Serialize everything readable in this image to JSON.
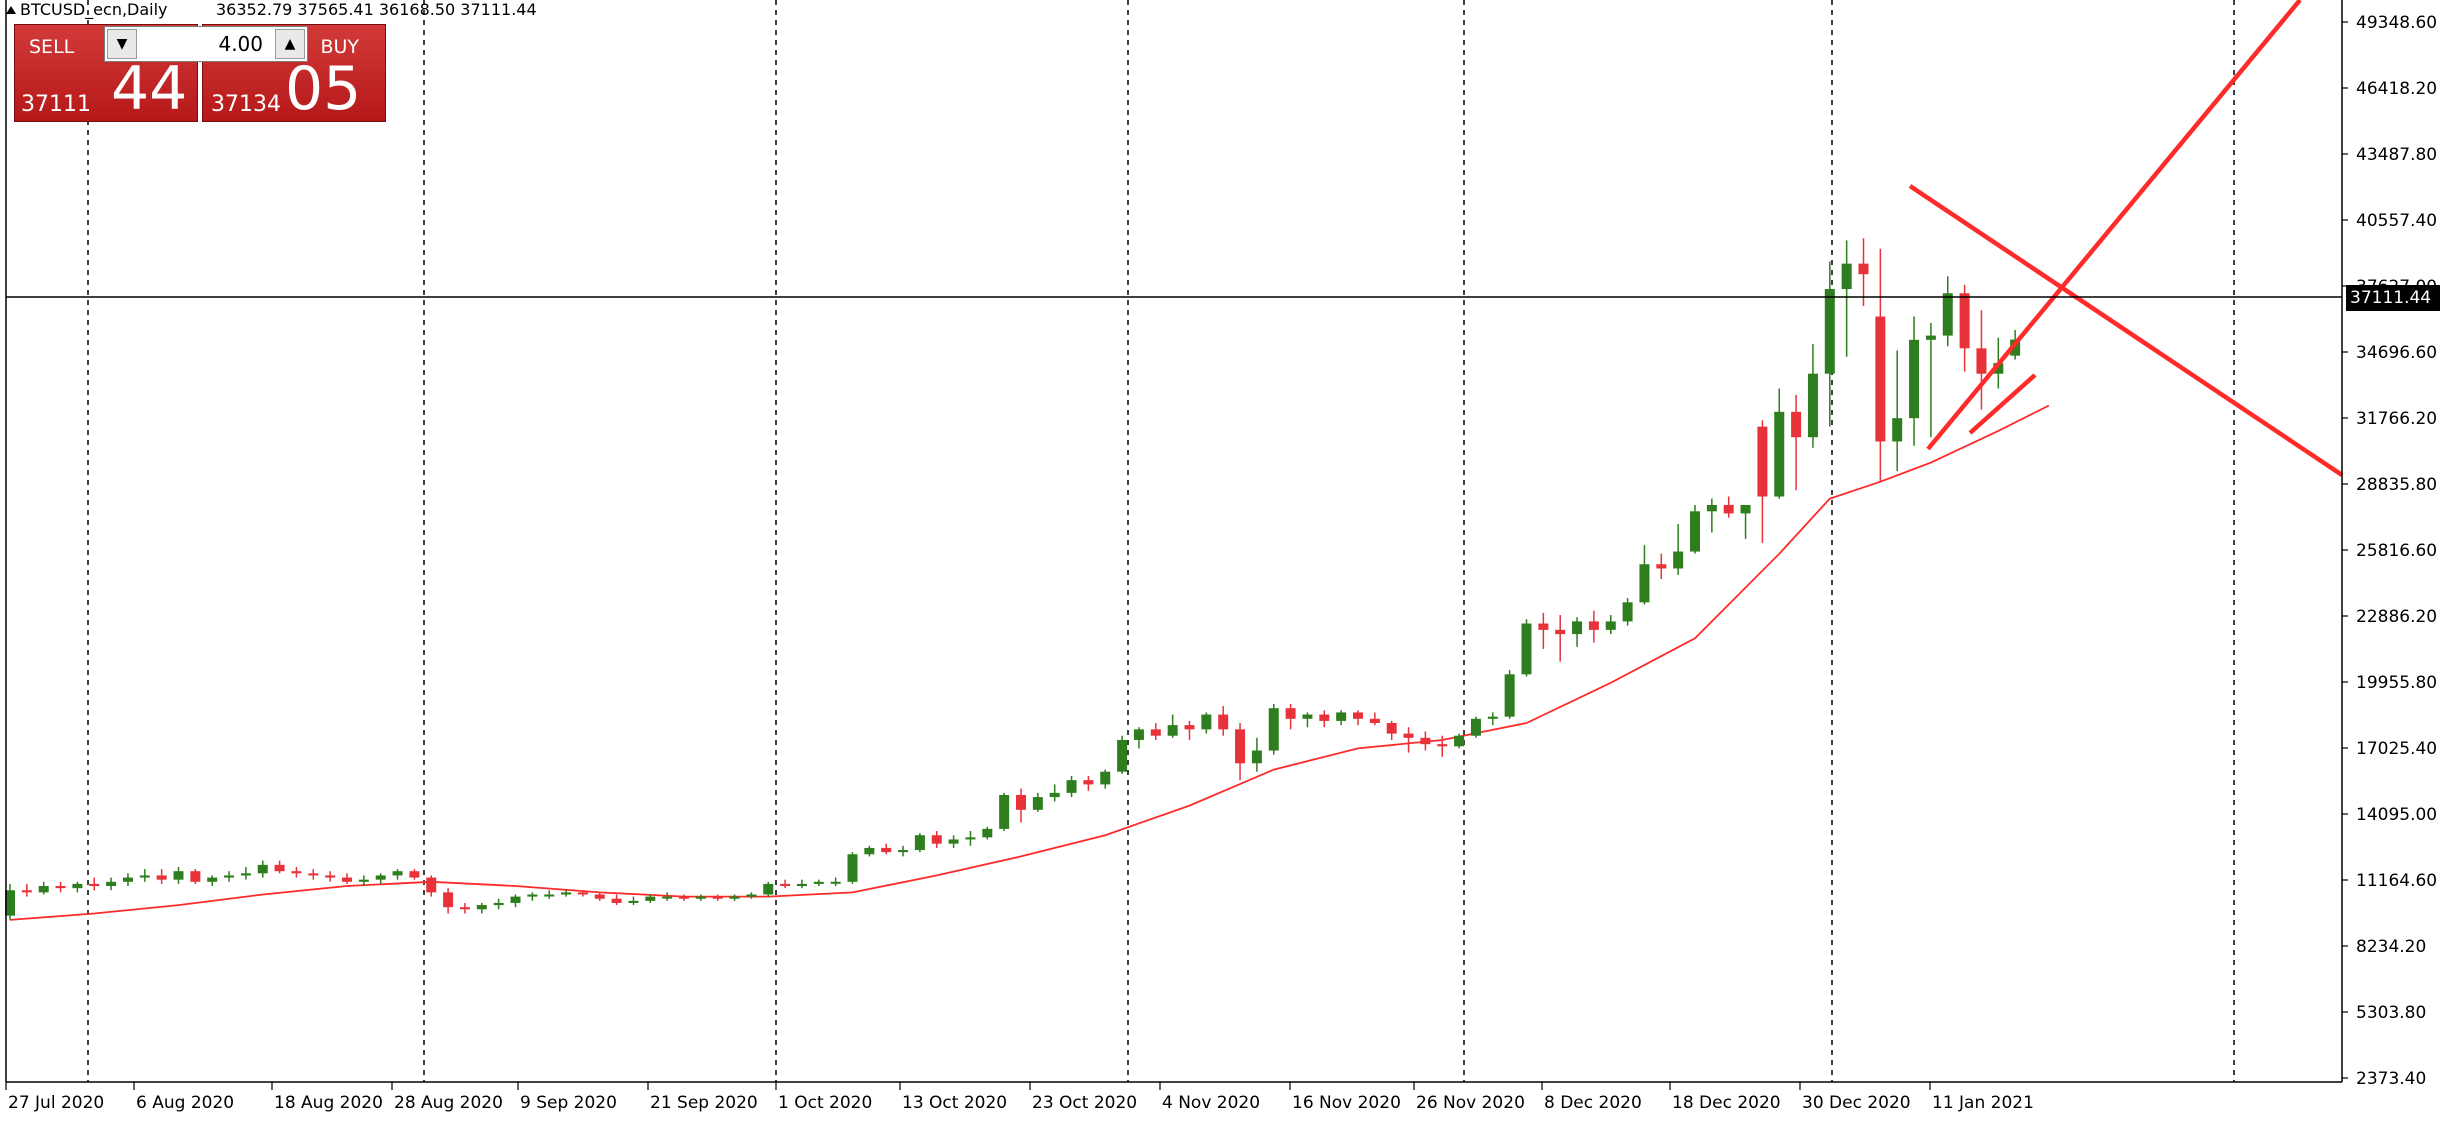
{
  "header": {
    "symbol_timeframe": "BTCUSD_ecn,Daily",
    "ohlc": "36352.79 37565.41 36168.50 37111.44"
  },
  "trade_panel": {
    "sell_label": "SELL",
    "buy_label": "BUY",
    "volume": "4.00",
    "sell_price_prefix": "37111",
    "sell_price_big": "44",
    "buy_price_prefix": "37134",
    "buy_price_big": "05",
    "down_arrow": "▼",
    "up_arrow": "▲"
  },
  "colors": {
    "bull": "#2e7d1e",
    "bear": "#e8323a",
    "moving_average": "#ff2a2a",
    "trendlines": "#ff2a2a",
    "background": "#ffffff",
    "grid": "#000000"
  },
  "price_axis": {
    "ticks": [
      "49348.60",
      "46418.20",
      "43487.80",
      "40557.40",
      "37627.00",
      "34696.60",
      "31766.20",
      "28835.80",
      "25816.60",
      "22886.20",
      "19955.80",
      "17025.40",
      "14095.00",
      "11164.60",
      "8234.20",
      "5303.80",
      "2373.40"
    ],
    "current_price": "37111.44"
  },
  "chart_data": {
    "type": "candlestick",
    "y_range": [
      2373.4,
      50300
    ],
    "date_ticks": [
      "27 Jul 2020",
      "6 Aug 2020",
      "18 Aug 2020",
      "28 Aug 2020",
      "9 Sep 2020",
      "21 Sep 2020",
      "1 Oct 2020",
      "13 Oct 2020",
      "23 Oct 2020",
      "4 Nov 2020",
      "16 Nov 2020",
      "26 Nov 2020",
      "8 Dec 2020",
      "18 Dec 2020",
      "30 Dec 2020",
      "11 Jan 2021"
    ],
    "candles": [
      {
        "o": 9900,
        "h": 11400,
        "l": 9700,
        "c": 11100
      },
      {
        "o": 11100,
        "h": 11400,
        "l": 10800,
        "c": 11000
      },
      {
        "o": 11000,
        "h": 11500,
        "l": 10900,
        "c": 11300
      },
      {
        "o": 11300,
        "h": 11500,
        "l": 11000,
        "c": 11200
      },
      {
        "o": 11200,
        "h": 11500,
        "l": 11000,
        "c": 11400
      },
      {
        "o": 11400,
        "h": 11700,
        "l": 11100,
        "c": 11300
      },
      {
        "o": 11300,
        "h": 11700,
        "l": 11100,
        "c": 11500
      },
      {
        "o": 11500,
        "h": 11900,
        "l": 11300,
        "c": 11700
      },
      {
        "o": 11700,
        "h": 12100,
        "l": 11500,
        "c": 11800
      },
      {
        "o": 11800,
        "h": 12100,
        "l": 11400,
        "c": 11600
      },
      {
        "o": 11600,
        "h": 12200,
        "l": 11400,
        "c": 12000
      },
      {
        "o": 12000,
        "h": 12100,
        "l": 11400,
        "c": 11500
      },
      {
        "o": 11500,
        "h": 11800,
        "l": 11300,
        "c": 11700
      },
      {
        "o": 11700,
        "h": 12000,
        "l": 11500,
        "c": 11800
      },
      {
        "o": 11800,
        "h": 12200,
        "l": 11600,
        "c": 11900
      },
      {
        "o": 11900,
        "h": 12500,
        "l": 11700,
        "c": 12300
      },
      {
        "o": 12300,
        "h": 12500,
        "l": 11900,
        "c": 12000
      },
      {
        "o": 12000,
        "h": 12200,
        "l": 11700,
        "c": 11900
      },
      {
        "o": 11900,
        "h": 12100,
        "l": 11600,
        "c": 11800
      },
      {
        "o": 11800,
        "h": 12000,
        "l": 11500,
        "c": 11700
      },
      {
        "o": 11700,
        "h": 11900,
        "l": 11400,
        "c": 11500
      },
      {
        "o": 11500,
        "h": 11800,
        "l": 11300,
        "c": 11600
      },
      {
        "o": 11600,
        "h": 11900,
        "l": 11400,
        "c": 11800
      },
      {
        "o": 11800,
        "h": 12100,
        "l": 11600,
        "c": 12000
      },
      {
        "o": 12000,
        "h": 12100,
        "l": 11600,
        "c": 11700
      },
      {
        "o": 11700,
        "h": 11800,
        "l": 10800,
        "c": 11000
      },
      {
        "o": 11000,
        "h": 11200,
        "l": 10000,
        "c": 10300
      },
      {
        "o": 10300,
        "h": 10500,
        "l": 10000,
        "c": 10200
      },
      {
        "o": 10200,
        "h": 10500,
        "l": 10000,
        "c": 10400
      },
      {
        "o": 10400,
        "h": 10700,
        "l": 10200,
        "c": 10500
      },
      {
        "o": 10500,
        "h": 10900,
        "l": 10300,
        "c": 10800
      },
      {
        "o": 10800,
        "h": 11000,
        "l": 10600,
        "c": 10900
      },
      {
        "o": 10900,
        "h": 11100,
        "l": 10700,
        "c": 10900
      },
      {
        "o": 10900,
        "h": 11100,
        "l": 10800,
        "c": 11000
      },
      {
        "o": 11000,
        "h": 11100,
        "l": 10800,
        "c": 10900
      },
      {
        "o": 10900,
        "h": 11000,
        "l": 10600,
        "c": 10700
      },
      {
        "o": 10700,
        "h": 10900,
        "l": 10400,
        "c": 10500
      },
      {
        "o": 10500,
        "h": 10800,
        "l": 10400,
        "c": 10600
      },
      {
        "o": 10600,
        "h": 10900,
        "l": 10500,
        "c": 10800
      },
      {
        "o": 10800,
        "h": 11000,
        "l": 10600,
        "c": 10800
      },
      {
        "o": 10800,
        "h": 10900,
        "l": 10600,
        "c": 10700
      },
      {
        "o": 10700,
        "h": 10900,
        "l": 10600,
        "c": 10800
      },
      {
        "o": 10800,
        "h": 10900,
        "l": 10600,
        "c": 10700
      },
      {
        "o": 10700,
        "h": 10900,
        "l": 10600,
        "c": 10800
      },
      {
        "o": 10800,
        "h": 11000,
        "l": 10700,
        "c": 10900
      },
      {
        "o": 10900,
        "h": 11500,
        "l": 10800,
        "c": 11400
      },
      {
        "o": 11400,
        "h": 11600,
        "l": 11200,
        "c": 11300
      },
      {
        "o": 11300,
        "h": 11600,
        "l": 11200,
        "c": 11400
      },
      {
        "o": 11400,
        "h": 11600,
        "l": 11300,
        "c": 11500
      },
      {
        "o": 11500,
        "h": 11700,
        "l": 11300,
        "c": 11500
      },
      {
        "o": 11500,
        "h": 12900,
        "l": 11400,
        "c": 12800
      },
      {
        "o": 12800,
        "h": 13200,
        "l": 12700,
        "c": 13100
      },
      {
        "o": 13100,
        "h": 13300,
        "l": 12800,
        "c": 12900
      },
      {
        "o": 12900,
        "h": 13200,
        "l": 12700,
        "c": 13000
      },
      {
        "o": 13000,
        "h": 13800,
        "l": 12900,
        "c": 13700
      },
      {
        "o": 13700,
        "h": 13900,
        "l": 13100,
        "c": 13300
      },
      {
        "o": 13300,
        "h": 13700,
        "l": 13100,
        "c": 13500
      },
      {
        "o": 13500,
        "h": 13900,
        "l": 13200,
        "c": 13600
      },
      {
        "o": 13600,
        "h": 14100,
        "l": 13500,
        "c": 14000
      },
      {
        "o": 14000,
        "h": 15700,
        "l": 13900,
        "c": 15600
      },
      {
        "o": 15600,
        "h": 15900,
        "l": 14300,
        "c": 14900
      },
      {
        "o": 14900,
        "h": 15700,
        "l": 14800,
        "c": 15500
      },
      {
        "o": 15500,
        "h": 16100,
        "l": 15300,
        "c": 15700
      },
      {
        "o": 15700,
        "h": 16500,
        "l": 15500,
        "c": 16300
      },
      {
        "o": 16300,
        "h": 16500,
        "l": 15800,
        "c": 16100
      },
      {
        "o": 16100,
        "h": 16800,
        "l": 15900,
        "c": 16700
      },
      {
        "o": 16700,
        "h": 18400,
        "l": 16600,
        "c": 18200
      },
      {
        "o": 18200,
        "h": 18800,
        "l": 17800,
        "c": 18700
      },
      {
        "o": 18700,
        "h": 19000,
        "l": 18200,
        "c": 18400
      },
      {
        "o": 18400,
        "h": 19400,
        "l": 18300,
        "c": 18900
      },
      {
        "o": 18900,
        "h": 19100,
        "l": 18200,
        "c": 18700
      },
      {
        "o": 18700,
        "h": 19500,
        "l": 18500,
        "c": 19400
      },
      {
        "o": 19400,
        "h": 19800,
        "l": 18400,
        "c": 18700
      },
      {
        "o": 18700,
        "h": 19000,
        "l": 16300,
        "c": 17100
      },
      {
        "o": 17100,
        "h": 18300,
        "l": 16700,
        "c": 17700
      },
      {
        "o": 17700,
        "h": 19900,
        "l": 17500,
        "c": 19700
      },
      {
        "o": 19700,
        "h": 19900,
        "l": 18700,
        "c": 19200
      },
      {
        "o": 19200,
        "h": 19500,
        "l": 18800,
        "c": 19400
      },
      {
        "o": 19400,
        "h": 19600,
        "l": 18800,
        "c": 19100
      },
      {
        "o": 19100,
        "h": 19600,
        "l": 18900,
        "c": 19500
      },
      {
        "o": 19500,
        "h": 19600,
        "l": 18900,
        "c": 19200
      },
      {
        "o": 19200,
        "h": 19500,
        "l": 18900,
        "c": 19000
      },
      {
        "o": 19000,
        "h": 19100,
        "l": 18200,
        "c": 18500
      },
      {
        "o": 18500,
        "h": 18800,
        "l": 17600,
        "c": 18300
      },
      {
        "o": 18300,
        "h": 18600,
        "l": 17700,
        "c": 18000
      },
      {
        "o": 18000,
        "h": 18400,
        "l": 17400,
        "c": 17900
      },
      {
        "o": 17900,
        "h": 18500,
        "l": 17800,
        "c": 18400
      },
      {
        "o": 18400,
        "h": 19300,
        "l": 18300,
        "c": 19200
      },
      {
        "o": 19200,
        "h": 19500,
        "l": 18900,
        "c": 19300
      },
      {
        "o": 19300,
        "h": 21500,
        "l": 19200,
        "c": 21300
      },
      {
        "o": 21300,
        "h": 23900,
        "l": 21200,
        "c": 23700
      },
      {
        "o": 23700,
        "h": 24200,
        "l": 22500,
        "c": 23400
      },
      {
        "o": 23400,
        "h": 24100,
        "l": 21900,
        "c": 23200
      },
      {
        "o": 23200,
        "h": 24000,
        "l": 22600,
        "c": 23800
      },
      {
        "o": 23800,
        "h": 24300,
        "l": 22800,
        "c": 23400
      },
      {
        "o": 23400,
        "h": 24100,
        "l": 23200,
        "c": 23800
      },
      {
        "o": 23800,
        "h": 24900,
        "l": 23600,
        "c": 24700
      },
      {
        "o": 24700,
        "h": 27400,
        "l": 24600,
        "c": 26500
      },
      {
        "o": 26500,
        "h": 27000,
        "l": 25800,
        "c": 26300
      },
      {
        "o": 26300,
        "h": 28400,
        "l": 26000,
        "c": 27100
      },
      {
        "o": 27100,
        "h": 29300,
        "l": 27000,
        "c": 29000
      },
      {
        "o": 29000,
        "h": 29600,
        "l": 28000,
        "c": 29300
      },
      {
        "o": 29300,
        "h": 29700,
        "l": 28700,
        "c": 28900
      },
      {
        "o": 28900,
        "h": 29300,
        "l": 27700,
        "c": 29300
      },
      {
        "o": 33000,
        "h": 33300,
        "l": 27500,
        "c": 29700
      },
      {
        "o": 29700,
        "h": 34800,
        "l": 29600,
        "c": 33700
      },
      {
        "o": 33700,
        "h": 34500,
        "l": 30000,
        "c": 32500
      },
      {
        "o": 32500,
        "h": 36900,
        "l": 32000,
        "c": 35500
      },
      {
        "o": 35500,
        "h": 40800,
        "l": 33000,
        "c": 39500
      },
      {
        "o": 39500,
        "h": 41800,
        "l": 36300,
        "c": 40700
      },
      {
        "o": 40700,
        "h": 41900,
        "l": 38700,
        "c": 40200
      },
      {
        "o": 38200,
        "h": 41400,
        "l": 30400,
        "c": 32300
      },
      {
        "o": 32300,
        "h": 36600,
        "l": 30900,
        "c": 33400
      },
      {
        "o": 33400,
        "h": 38200,
        "l": 32100,
        "c": 37100
      },
      {
        "o": 37100,
        "h": 37900,
        "l": 32500,
        "c": 37300
      },
      {
        "o": 37300,
        "h": 40100,
        "l": 36800,
        "c": 39300
      },
      {
        "o": 39300,
        "h": 39700,
        "l": 35600,
        "c": 36700
      },
      {
        "o": 36700,
        "h": 38500,
        "l": 33800,
        "c": 35500
      },
      {
        "o": 35500,
        "h": 37200,
        "l": 34800,
        "c": 36000
      },
      {
        "o": 36352.79,
        "h": 37565.41,
        "l": 36168.5,
        "c": 37111.44
      }
    ],
    "moving_average": [
      {
        "i": 0,
        "v": 9700
      },
      {
        "i": 5,
        "v": 10000
      },
      {
        "i": 10,
        "v": 10400
      },
      {
        "i": 15,
        "v": 10900
      },
      {
        "i": 20,
        "v": 11300
      },
      {
        "i": 25,
        "v": 11500
      },
      {
        "i": 30,
        "v": 11300
      },
      {
        "i": 35,
        "v": 11000
      },
      {
        "i": 40,
        "v": 10800
      },
      {
        "i": 45,
        "v": 10800
      },
      {
        "i": 50,
        "v": 11000
      },
      {
        "i": 55,
        "v": 11800
      },
      {
        "i": 60,
        "v": 12700
      },
      {
        "i": 65,
        "v": 13700
      },
      {
        "i": 70,
        "v": 15100
      },
      {
        "i": 75,
        "v": 16800
      },
      {
        "i": 80,
        "v": 17800
      },
      {
        "i": 85,
        "v": 18200
      },
      {
        "i": 90,
        "v": 19000
      },
      {
        "i": 95,
        "v": 20900
      },
      {
        "i": 100,
        "v": 23000
      },
      {
        "i": 105,
        "v": 27000
      },
      {
        "i": 108,
        "v": 29600
      },
      {
        "i": 111,
        "v": 30400
      },
      {
        "i": 114,
        "v": 31300
      },
      {
        "i": 118,
        "v": 32800
      },
      {
        "i": 121,
        "v": 34000
      }
    ]
  }
}
